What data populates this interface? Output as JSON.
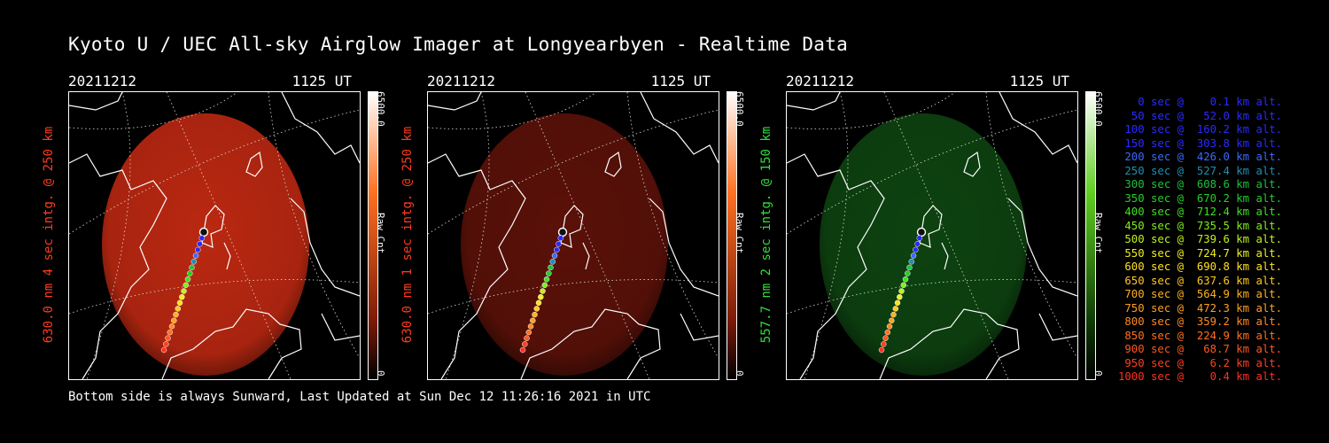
{
  "title": "Kyoto U / UEC All-sky Airglow Imager at Longyearbyen - Realtime Data",
  "footer": "Bottom side is always Sunward, Last Updated at Sun Dec 12 11:26:16 2021 in UTC",
  "panels": [
    {
      "date": "20211212",
      "time": "1125 UT",
      "ylabel": "630.0 nm 4 sec intg. @ 250 km",
      "label_color": "#ff3b1f",
      "glow": "#c42a12",
      "glow_opacity": 0.95,
      "colorbar": {
        "max": "6500.0",
        "unit": "Raw Cnt",
        "min": "0",
        "top": "#ffffff",
        "mid": "#ff7020",
        "low": "#7a1a08"
      }
    },
    {
      "date": "20211212",
      "time": "1125 UT",
      "ylabel": "630.0 nm 1 sec intg. @ 250 km",
      "label_color": "#ff3b1f",
      "glow": "#6a140a",
      "glow_opacity": 0.85,
      "colorbar": {
        "max": "6500.0",
        "unit": "Raw Cnt",
        "min": "0",
        "top": "#ffffff",
        "mid": "#ff7020",
        "low": "#7a1a08"
      }
    },
    {
      "date": "20211212",
      "time": "1125 UT",
      "ylabel": "557.7 nm 2 sec intg. @ 150 km",
      "label_color": "#2fe03a",
      "glow": "#0f4a12",
      "glow_opacity": 0.9,
      "colorbar": {
        "max": "6500.0",
        "unit": "Raw Cnt",
        "min": "0",
        "top": "#ffffff",
        "mid": "#5fcf20",
        "low": "#0e3a06"
      }
    }
  ],
  "legend": [
    {
      "text": "   0 sec @    0.1 km alt.",
      "color": "#2a2aff"
    },
    {
      "text": "  50 sec @   52.0 km alt.",
      "color": "#2a2aff"
    },
    {
      "text": " 100 sec @  160.2 km alt.",
      "color": "#2a2aff"
    },
    {
      "text": " 150 sec @  303.8 km alt.",
      "color": "#2a2aff"
    },
    {
      "text": " 200 sec @  426.0 km alt.",
      "color": "#3a6aff"
    },
    {
      "text": " 250 sec @  527.4 km alt.",
      "color": "#1e90b0"
    },
    {
      "text": " 300 sec @  608.6 km alt.",
      "color": "#1fc040"
    },
    {
      "text": " 350 sec @  670.2 km alt.",
      "color": "#22d028"
    },
    {
      "text": " 400 sec @  712.4 km alt.",
      "color": "#40e020"
    },
    {
      "text": " 450 sec @  735.5 km alt.",
      "color": "#80ee20"
    },
    {
      "text": " 500 sec @  739.6 km alt.",
      "color": "#c0f020"
    },
    {
      "text": " 550 sec @  724.7 km alt.",
      "color": "#f0f020"
    },
    {
      "text": " 600 sec @  690.8 km alt.",
      "color": "#ffe020"
    },
    {
      "text": " 650 sec @  637.6 km alt.",
      "color": "#ffc820"
    },
    {
      "text": " 700 sec @  564.9 km alt.",
      "color": "#ffb020"
    },
    {
      "text": " 750 sec @  472.3 km alt.",
      "color": "#ffa020"
    },
    {
      "text": " 800 sec @  359.2 km alt.",
      "color": "#ff8a20"
    },
    {
      "text": " 850 sec @  224.9 km alt.",
      "color": "#ff7020"
    },
    {
      "text": " 900 sec @   68.7 km alt.",
      "color": "#ff5820"
    },
    {
      "text": " 950 sec @    6.2 km alt.",
      "color": "#ff4020"
    },
    {
      "text": "1000 sec @    0.4 km alt.",
      "color": "#ff3020"
    }
  ]
}
